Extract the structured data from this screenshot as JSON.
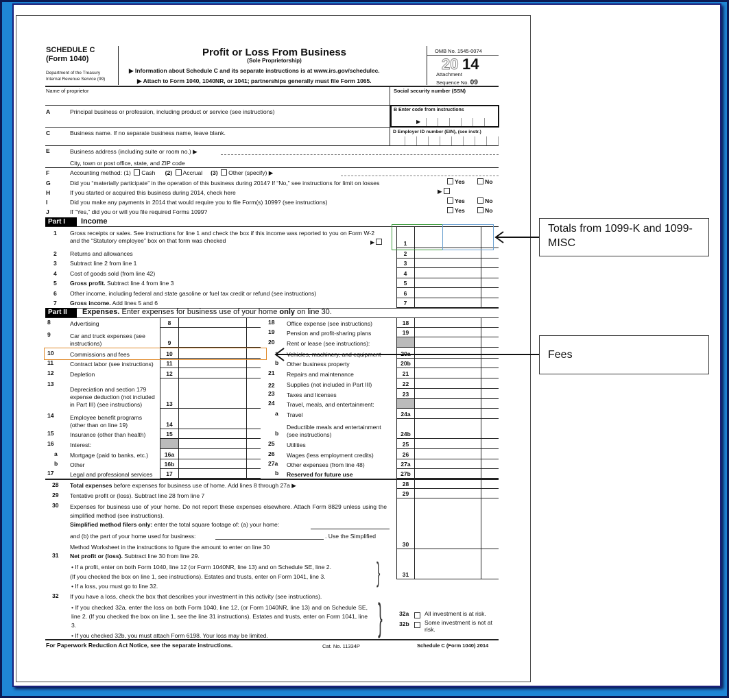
{
  "header": {
    "schedule": "SCHEDULE C",
    "form": "(Form 1040)",
    "dept1": "Department of the Treasury",
    "dept2": "Internal Revenue Service (99)",
    "title": "Profit or Loss From Business",
    "subtitle": "(Sole Proprietorship)",
    "info": "▶ Information about Schedule C and its separate instructions is at www.irs.gov/schedulec.",
    "attach": "▶ Attach to Form 1040, 1040NR, or 1041; partnerships generally must file Form 1065.",
    "omb": "OMB No. 1545-0074",
    "year_outline": "20",
    "year_bold": "14",
    "attachment": "Attachment",
    "sequence": "Sequence No.",
    "sequence_no": "09"
  },
  "top": {
    "name": "Name of proprietor",
    "ssn": "Social security number (SSN)",
    "A_letter": "A",
    "A": "Principal business or profession, including product or service (see instructions)",
    "B": "B  Enter code from instructions",
    "C_letter": "C",
    "C": "Business name. If no separate business name, leave blank.",
    "D": "D  Employer ID number (EIN), (see instr.)",
    "E_letter": "E",
    "E": "Business address (including suite or room no.) ▶",
    "E2": "City, town or post office, state, and ZIP code"
  },
  "questions": [
    {
      "letter": "F",
      "text": "Accounting method:   (1)",
      "opt1": "Cash",
      "n2": "(2)",
      "opt2": "Accrual",
      "n3": "(3)",
      "opt3": "Other (specify) ▶"
    },
    {
      "letter": "G",
      "text": "Did you “materially participate” in the operation of this business during 2014? If “No,” see instructions for limit on losses",
      "yes": "Yes",
      "no": "No"
    },
    {
      "letter": "H",
      "text": "If you started or acquired this business during 2014, check here"
    },
    {
      "letter": "I",
      "text": "Did you make any payments in 2014 that would require you to file Form(s) 1099? (see instructions)",
      "yes": "Yes",
      "no": "No"
    },
    {
      "letter": "J",
      "text": "If “Yes,” did you or will you file required Forms 1099?",
      "yes": "Yes",
      "no": "No"
    }
  ],
  "part1": {
    "tag": "Part I",
    "title": "Income",
    "lines": [
      {
        "n": "1",
        "text": "Gross receipts or sales. See instructions for line 1 and check the box if this income was reported to you on Form W-2 and the “Statutory employee” box on that form was checked",
        "code": "1"
      },
      {
        "n": "2",
        "text": "Returns and allowances",
        "code": "2"
      },
      {
        "n": "3",
        "text": "Subtract line 2 from line 1",
        "code": "3"
      },
      {
        "n": "4",
        "text": "Cost of goods sold (from line 42)",
        "code": "4"
      },
      {
        "n": "5",
        "bold": "Gross profit.",
        "text": " Subtract line 4 from line 3",
        "code": "5"
      },
      {
        "n": "6",
        "text": "Other income, including federal and state gasoline or fuel tax credit or refund (see instructions)",
        "code": "6"
      },
      {
        "n": "7",
        "bold": "Gross income.",
        "text": " Add lines 5 and 6",
        "code": "7"
      }
    ]
  },
  "part2": {
    "tag": "Part II",
    "title_bold": "Expenses.",
    "title": " Enter expenses for business use of your home ",
    "title_bold2": "only",
    "title_end": " on line 30.",
    "left": [
      {
        "n": "8",
        "text": "Advertising",
        "code": "8"
      },
      {
        "n": "9",
        "text": "Car and truck expenses (see instructions)",
        "code": "9"
      },
      {
        "n": "10",
        "text": "Commissions and fees",
        "code": "10"
      },
      {
        "n": "11",
        "text": "Contract labor (see instructions)",
        "code": "11"
      },
      {
        "n": "12",
        "text": "Depletion",
        "code": "12"
      },
      {
        "n": "13",
        "text": "Depreciation and section 179 expense deduction (not included in Part III) (see instructions)",
        "code": "13"
      },
      {
        "n": "14",
        "text": "Employee benefit programs (other than on line 19)",
        "code": "14"
      },
      {
        "n": "15",
        "text": "Insurance (other than health)",
        "code": "15"
      },
      {
        "n": "16",
        "text": "Interest:",
        "code": ""
      },
      {
        "n": "a",
        "text": "Mortgage (paid to banks, etc.)",
        "code": "16a"
      },
      {
        "n": "b",
        "text": "Other",
        "code": "16b"
      },
      {
        "n": "17",
        "text": "Legal and professional services",
        "code": "17"
      }
    ],
    "right": [
      {
        "n": "18",
        "text": "Office expense (see instructions)",
        "code": "18"
      },
      {
        "n": "19",
        "text": "Pension and profit-sharing plans",
        "code": "19"
      },
      {
        "n": "20",
        "text": "Rent or lease (see instructions):",
        "code": ""
      },
      {
        "n": "a",
        "text": "Vehicles, machinery, and equipment",
        "code": "20a"
      },
      {
        "n": "b",
        "text": "Other business property",
        "code": "20b"
      },
      {
        "n": "21",
        "text": "Repairs and maintenance",
        "code": "21"
      },
      {
        "n": "22",
        "text": "Supplies (not included in Part III)",
        "code": "22"
      },
      {
        "n": "23",
        "text": "Taxes and licenses",
        "code": "23"
      },
      {
        "n": "24",
        "text": "Travel, meals, and entertainment:",
        "code": ""
      },
      {
        "n": "a",
        "text": "Travel",
        "code": "24a"
      },
      {
        "n": "b",
        "text": "Deductible meals and entertainment (see instructions)",
        "code": "24b"
      },
      {
        "n": "25",
        "text": "Utilities",
        "code": "25"
      },
      {
        "n": "26",
        "text": "Wages (less employment credits)",
        "code": "26"
      },
      {
        "n": "27a",
        "text": "Other expenses (from line 48)",
        "code": "27a"
      },
      {
        "n": "b",
        "text": "Reserved for future use",
        "code": "27b"
      }
    ]
  },
  "bottom": {
    "l28n": "28",
    "l28b": "Total expenses",
    "l28": " before expenses for business use of home. Add lines 8 through 27a  ▶",
    "c28": "28",
    "l29n": "29",
    "l29": "Tentative profit or (loss). Subtract line 28 from line 7",
    "c29": "29",
    "l30n": "30",
    "l30a": "Expenses for business use of your home. Do not report these expenses elsewhere. Attach Form 8829 unless using the simplified method (see instructions).",
    "l30b_bold": "Simplified method filers only:",
    "l30b": " enter the total square footage of: (a) your home:",
    "l30c": "and (b) the part of your home used for business:",
    "l30c2": ". Use the Simplified",
    "l30d": "Method Worksheet in the instructions to figure the amount to enter on line 30",
    "c30": "30",
    "l31n": "31",
    "l31_bold": "Net profit or (loss).",
    "l31": "  Subtract line 30 from line 29.",
    "l31a": "• If a profit, enter on both Form 1040, line 12 (or Form 1040NR, line 13) and on Schedule SE, line 2.",
    "l31b": "(If you checked the box on line 1, see instructions). Estates and trusts, enter on Form 1041, line 3.",
    "l31c": "• If a loss, you must  go to line 32.",
    "c31": "31",
    "l32n": "32",
    "l32": "If you have a loss, check the box that describes your investment in this activity (see instructions).",
    "l32a": "• If you checked 32a, enter the loss on both Form 1040, line 12, (or Form 1040NR, line 13) and on Schedule SE, line 2. (If you checked the box on line 1, see the line 31 instructions). Estates and trusts, enter on Form 1041, line 3.",
    "l32b": "• If you checked 32b, you must attach Form 6198. Your loss may be limited.",
    "c32a": "32a",
    "c32a_text": "All investment is at risk.",
    "c32b": "32b",
    "c32b_text": "Some investment is not at risk."
  },
  "footer": {
    "left": "For Paperwork Reduction Act Notice, see the separate instructions.",
    "cat": "Cat. No. 11334P",
    "right": "Schedule C (Form 1040) 2014"
  },
  "annotations": {
    "totals": "Totals from 1099-K and 1099-MISC",
    "fees": "Fees",
    "green": "#3a9a3a",
    "blue": "#6aa0d0",
    "orange": "#e08a2a"
  }
}
